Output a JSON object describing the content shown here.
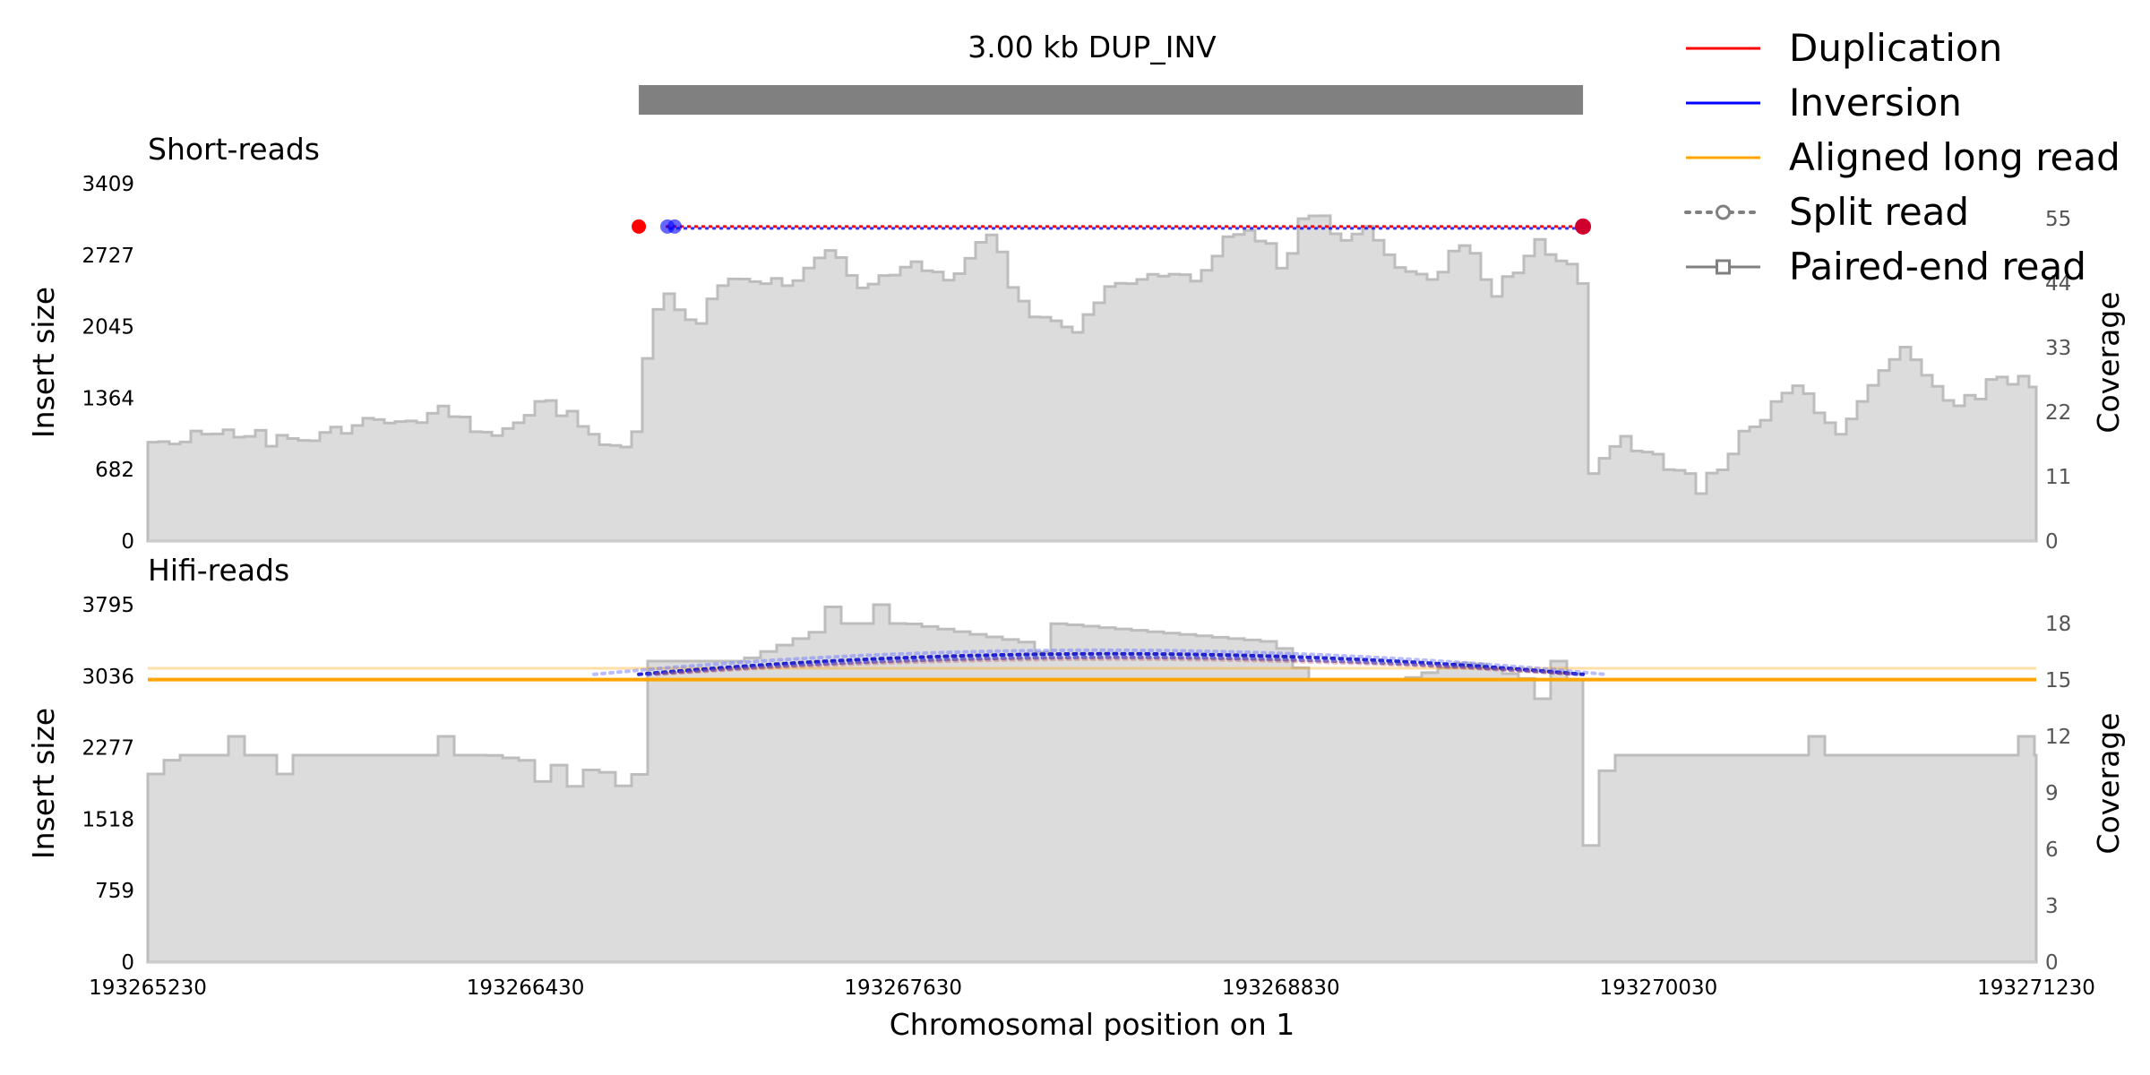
{
  "chart_data": {
    "type": "area",
    "title": "3.00 kb DUP_INV",
    "sv_span": [
      193266790,
      193269790
    ],
    "xlabel": "Chromosomal position on 1",
    "xlim": [
      193265230,
      193271230
    ],
    "xticks": [
      "193265230",
      "193266430",
      "193267630",
      "193268830",
      "193270030",
      "193271230"
    ],
    "legend": {
      "placement": "top-right",
      "entries": [
        {
          "label": "Duplication",
          "color": "#ff0000",
          "style": "solid"
        },
        {
          "label": "Inversion",
          "color": "#0000ff",
          "style": "solid"
        },
        {
          "label": "Aligned long read",
          "color": "#ffa500",
          "style": "solid"
        },
        {
          "label": "Split read",
          "color": "#808080",
          "style": "dotted-circle"
        },
        {
          "label": "Paired-end read",
          "color": "#808080",
          "style": "solid-square"
        }
      ]
    },
    "panels": [
      {
        "name": "Short-reads",
        "ylabel_left": "Insert size",
        "ylabel_right": "Coverage",
        "yticks_left": [
          "0",
          "682",
          "1364",
          "2045",
          "2727",
          "3409"
        ],
        "yticks_right": [
          "0",
          "11",
          "22",
          "33",
          "44",
          "55"
        ],
        "yleft_lim": [
          0,
          3409
        ],
        "yright_lim": [
          0,
          61
        ],
        "coverage": {
          "x": [
            193265230,
            193265500,
            193265700,
            193265900,
            193266000,
            193266150,
            193266300,
            193266500,
            193266600,
            193266720,
            193266780,
            193266790,
            193266850,
            193266960,
            193267020,
            193267100,
            193267250,
            193267400,
            193267500,
            193267630,
            193267750,
            193267900,
            193268000,
            193268150,
            193268250,
            193268400,
            193268550,
            193268700,
            193268830,
            193268900,
            193269000,
            193269100,
            193269200,
            193269300,
            193269400,
            193269500,
            193269650,
            193269750,
            193269790,
            193269800,
            193269900,
            193270030,
            193270150,
            193270300,
            193270450,
            193270600,
            193270800,
            193270950,
            193271100,
            193271230
          ],
          "y": [
            17,
            19,
            16,
            21,
            19,
            22,
            18,
            24,
            19,
            16,
            18,
            30,
            43,
            37,
            43,
            46,
            44,
            49,
            43,
            48,
            44,
            52,
            40,
            35,
            42,
            46,
            44,
            55,
            47,
            58,
            51,
            53,
            46,
            44,
            51,
            43,
            51,
            46,
            42,
            11,
            18,
            14,
            9,
            19,
            26,
            19,
            34,
            22,
            28,
            26
          ]
        },
        "sv_arc": {
          "start": 193266790,
          "end": 193269790,
          "insert_size": 3000,
          "colors": [
            "#ff0000",
            "#0000ff"
          ]
        }
      },
      {
        "name": "Hifi-reads",
        "ylabel_left": "Insert size",
        "ylabel_right": "Coverage",
        "yticks_left": [
          "0",
          "759",
          "1518",
          "2277",
          "3036",
          "3795"
        ],
        "yticks_right": [
          "0",
          "3",
          "6",
          "9",
          "12",
          "15",
          "18"
        ],
        "yleft_lim": [
          0,
          3795
        ],
        "yright_lim": [
          0,
          19
        ],
        "coverage": {
          "x": [
            193265230,
            193265300,
            193266300,
            193266700,
            193266750,
            193266790,
            193266800,
            193267100,
            193267400,
            193267630,
            193268000,
            193268100,
            193268800,
            193268900,
            193269200,
            193269400,
            193269600,
            193269780,
            193269790,
            193269800,
            193269870,
            193271230
          ],
          "y": [
            10,
            11,
            11,
            10,
            8,
            15,
            16,
            16,
            18,
            18,
            17,
            18,
            17,
            15,
            15,
            16,
            15,
            15,
            6,
            9,
            11,
            11
          ]
        },
        "long_reads_insert_size": [
          3000,
          3120
        ],
        "split_arcs_insert_size": 3036
      }
    ]
  }
}
